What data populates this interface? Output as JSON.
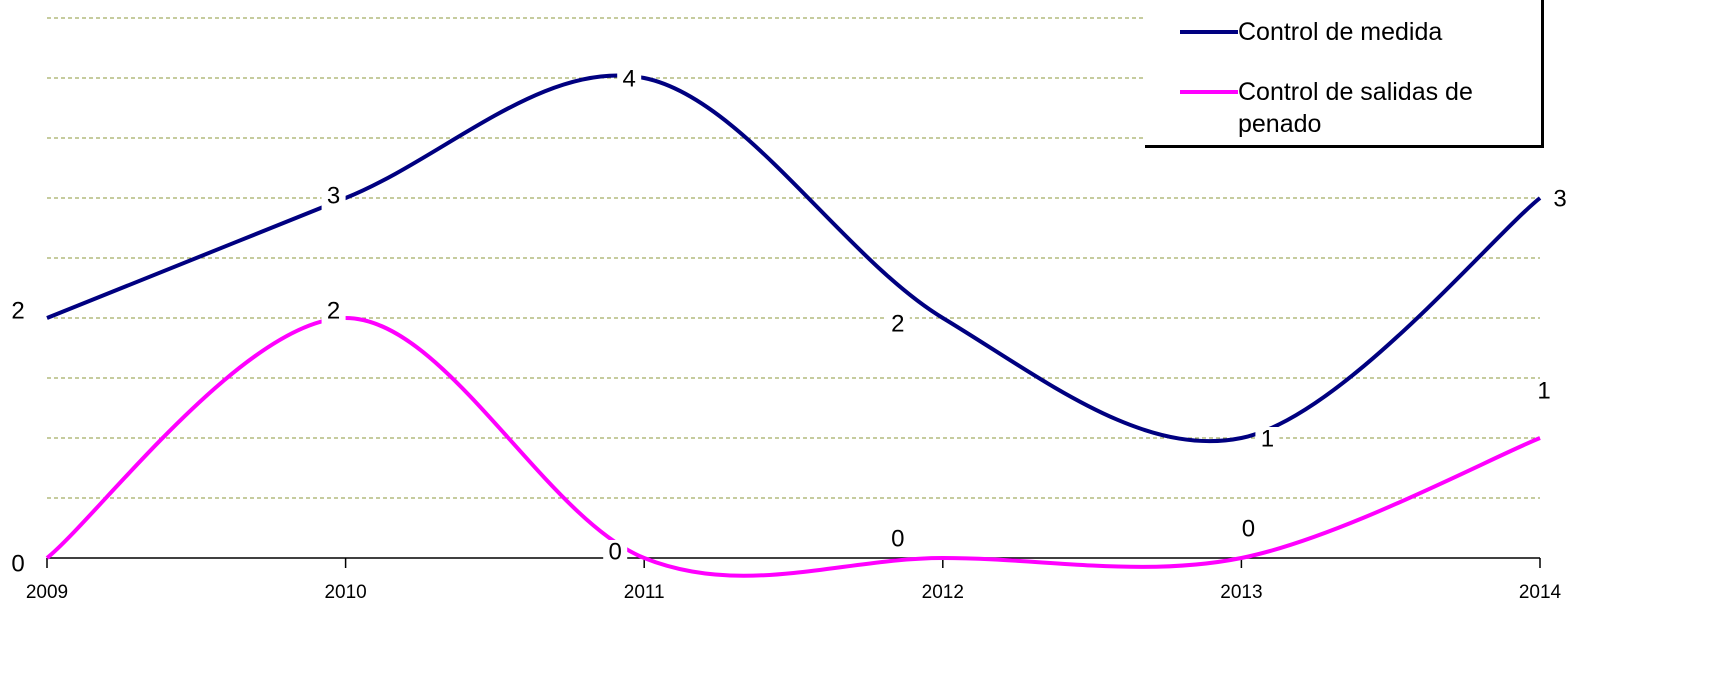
{
  "chart_data": {
    "type": "line",
    "categories": [
      "2009",
      "2010",
      "2011",
      "2012",
      "2013",
      "2014"
    ],
    "series": [
      {
        "name": "Control de medida",
        "color": "#000080",
        "values": [
          2,
          3,
          4,
          2,
          1,
          3
        ]
      },
      {
        "name": "Control de salidas de penado",
        "color": "#ff00ff",
        "values": [
          0,
          2,
          0,
          0,
          0,
          1
        ]
      }
    ],
    "ylim": [
      0,
      4.5
    ],
    "yticks": [
      0.5,
      1,
      1.5,
      2,
      2.5,
      3,
      3.5,
      4,
      4.5
    ],
    "grid": true,
    "legend": "top-right"
  }
}
